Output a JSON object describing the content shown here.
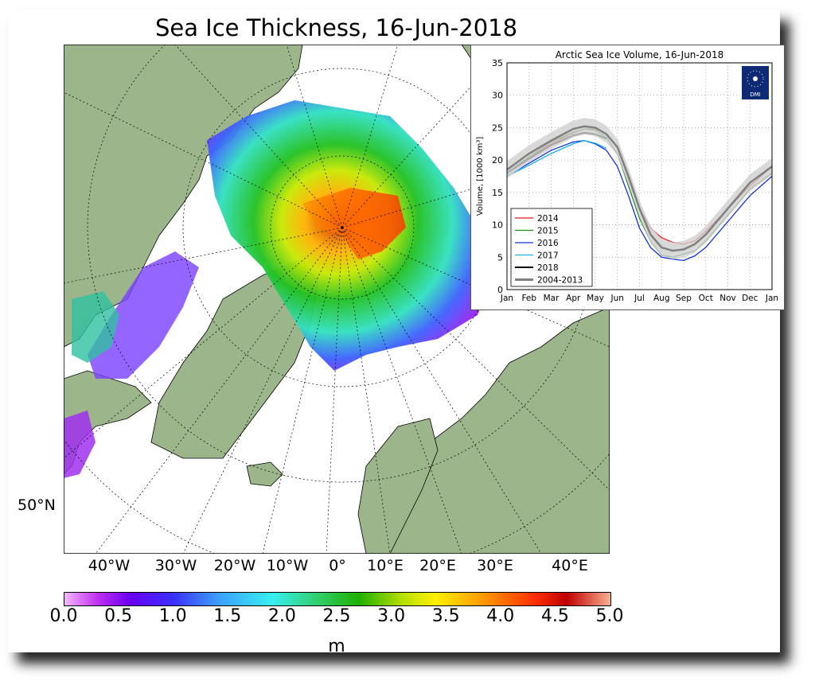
{
  "title": "Sea Ice Thickness, 16-Jun-2018",
  "map": {
    "lon_labels": [
      "40°W",
      "30°W",
      "20°W",
      "10°W",
      "0°",
      "10°E",
      "20°E",
      "30°E",
      "40°E"
    ],
    "lat_label": "50°N",
    "colors": {
      "land": "#9cb58a",
      "ocean": "#ffffff",
      "coast": "#000000"
    }
  },
  "colorbar": {
    "ticks": [
      "0.0",
      "0.5",
      "1.0",
      "1.5",
      "2.0",
      "2.5",
      "3.0",
      "3.5",
      "4.0",
      "4.5",
      "5.0"
    ],
    "unit": "m",
    "range": [
      0,
      5
    ]
  },
  "logo": {
    "text": "DMI"
  },
  "chart_data": {
    "type": "line",
    "title": "Arctic Sea Ice Volume, 16-Jun-2018",
    "ylabel": "Volume, [1000 km³]",
    "ylim": [
      0,
      35
    ],
    "yticks": [
      "0",
      "5",
      "10",
      "15",
      "20",
      "25",
      "30",
      "35"
    ],
    "xticks": [
      "Jan",
      "Feb",
      "Mar",
      "Apr",
      "May",
      "Jun",
      "Jul",
      "Aug",
      "Sep",
      "Oct",
      "Nov",
      "Dec",
      "Jan"
    ],
    "grid": true,
    "legend_position": "bottom-left",
    "x_months": [
      0,
      1,
      2,
      3,
      3.5,
      4,
      4.5,
      5,
      5.5,
      6,
      6.5,
      7,
      7.5,
      8,
      8.5,
      9,
      10,
      11,
      12
    ],
    "series": [
      {
        "name": "2014",
        "color": "#e8141c",
        "values": [
          18,
          20.5,
          22.5,
          24.2,
          24.8,
          24.8,
          24,
          22,
          17,
          12.5,
          9.5,
          8,
          7.3,
          7,
          7.5,
          9,
          12.5,
          16,
          19
        ]
      },
      {
        "name": "2015",
        "color": "#1f8a1f",
        "values": [
          18,
          20.5,
          22.8,
          24.3,
          24.8,
          24.6,
          23.5,
          21,
          16,
          11,
          7.5,
          5.3,
          5,
          5.5,
          6,
          7.5,
          11.5,
          15.5,
          18
        ]
      },
      {
        "name": "2016",
        "color": "#1030d8",
        "values": [
          17.5,
          19.5,
          21.5,
          22.8,
          23,
          22.5,
          21.5,
          19,
          14.5,
          9.5,
          6.5,
          5,
          4.7,
          4.5,
          5.2,
          6.5,
          10.5,
          14.5,
          17.5
        ]
      },
      {
        "name": "2017",
        "color": "#18b0e8",
        "values": [
          17.5,
          19.2,
          21,
          22.5,
          23,
          22.6,
          21.8,
          null,
          null,
          null,
          null,
          null,
          null,
          null,
          null,
          null,
          null,
          null,
          null
        ]
      },
      {
        "name": "2018",
        "color": "#000000",
        "values": [
          18,
          20.2,
          22.3,
          23.8,
          24.2,
          24,
          23.3,
          null,
          null,
          null,
          null,
          null,
          null,
          null,
          null,
          null,
          null,
          null,
          null
        ]
      },
      {
        "name": "2004-2013",
        "color": "#808080",
        "values": [
          18.5,
          21,
          23,
          24.8,
          25.2,
          25,
          24,
          22,
          17.5,
          12.5,
          8.5,
          6.5,
          6,
          6.2,
          7,
          8.5,
          12.5,
          16.5,
          19
        ]
      }
    ]
  }
}
